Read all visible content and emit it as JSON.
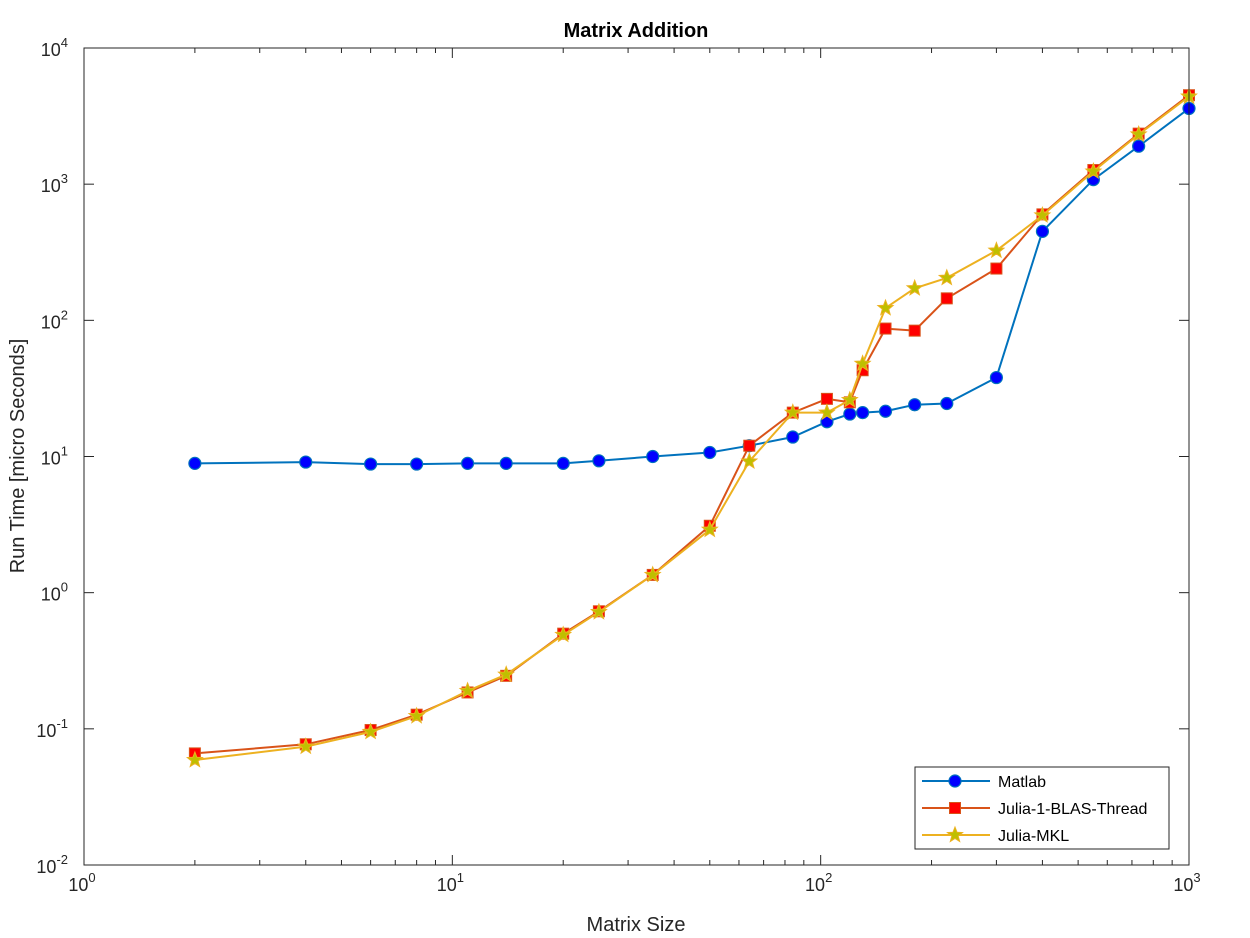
{
  "chart_data": {
    "type": "line",
    "title": "Matrix Addition",
    "xlabel": "Matrix Size",
    "ylabel": "Run Time  [micro Seconds]",
    "x_scale": "log",
    "y_scale": "log",
    "xlim": [
      1,
      1000
    ],
    "ylim": [
      0.01,
      10000
    ],
    "x_ticks": [
      {
        "base": "10",
        "exp": "0",
        "value": 1
      },
      {
        "base": "10",
        "exp": "1",
        "value": 10
      },
      {
        "base": "10",
        "exp": "2",
        "value": 100
      },
      {
        "base": "10",
        "exp": "3",
        "value": 1000
      }
    ],
    "y_ticks": [
      {
        "base": "10",
        "exp": "-2",
        "value": 0.01
      },
      {
        "base": "10",
        "exp": "-1",
        "value": 0.1
      },
      {
        "base": "10",
        "exp": "0",
        "value": 1
      },
      {
        "base": "10",
        "exp": "1",
        "value": 10
      },
      {
        "base": "10",
        "exp": "2",
        "value": 100
      },
      {
        "base": "10",
        "exp": "3",
        "value": 1000
      },
      {
        "base": "10",
        "exp": "4",
        "value": 10000
      }
    ],
    "grid": false,
    "legend_position": "bottom-right",
    "x": [
      2,
      4,
      6,
      8,
      11,
      14,
      20,
      25,
      35,
      50,
      64,
      84,
      104,
      120,
      130,
      150,
      180,
      220,
      300,
      400,
      550,
      730,
      1000
    ],
    "series": [
      {
        "name": "Matlab",
        "color": "#0072BD",
        "marker": "circle",
        "marker_fill": "#0000FF",
        "values": [
          8.9,
          9.1,
          8.8,
          8.8,
          8.9,
          8.9,
          8.9,
          9.3,
          10.0,
          10.7,
          12.0,
          13.9,
          18.0,
          20.5,
          21.0,
          21.5,
          24.0,
          24.5,
          38.0,
          450,
          1080,
          1900,
          3600
        ]
      },
      {
        "name": "Julia-1-BLAS-Thread",
        "color": "#D95319",
        "marker": "square",
        "marker_fill": "#FF0000",
        "values": [
          0.066,
          0.077,
          0.098,
          0.127,
          0.185,
          0.245,
          0.5,
          0.73,
          1.35,
          3.1,
          12.0,
          21.0,
          26.5,
          25.0,
          43.0,
          87.0,
          84.0,
          145,
          240,
          600,
          1270,
          2350,
          4500
        ]
      },
      {
        "name": "Julia-MKL",
        "color": "#EDB120",
        "marker": "star",
        "marker_fill": "#BFBF00",
        "values": [
          0.059,
          0.074,
          0.095,
          0.124,
          0.19,
          0.25,
          0.49,
          0.72,
          1.35,
          2.9,
          9.2,
          21.0,
          21.0,
          26.0,
          48.0,
          123,
          172,
          205,
          325,
          590,
          1240,
          2320,
          4400
        ]
      }
    ]
  }
}
